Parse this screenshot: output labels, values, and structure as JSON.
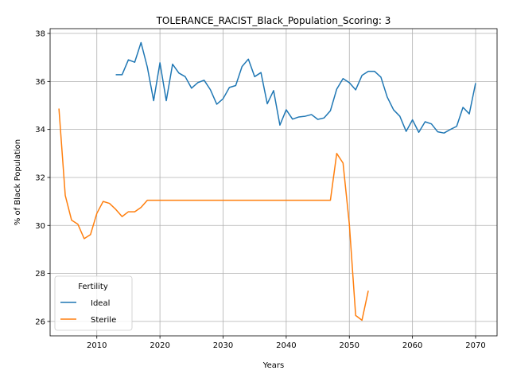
{
  "chart_data": {
    "type": "line",
    "title": "TOLERANCE_RACIST_Black_Population_Scoring: 3",
    "xlabel": "Years",
    "ylabel": "% of Black Population",
    "xlim": [
      2002.6,
      2073.4
    ],
    "ylim": [
      25.4,
      38.2
    ],
    "xticks": [
      2010,
      2020,
      2030,
      2040,
      2050,
      2060,
      2070
    ],
    "yticks": [
      26,
      28,
      30,
      32,
      34,
      36,
      38
    ],
    "grid": true,
    "legend": {
      "title": "Fertility",
      "placement": "lower-left"
    },
    "series": [
      {
        "name": "Ideal",
        "color": "#1f77b4",
        "x": [
          2013,
          2014,
          2015,
          2016,
          2017,
          2018,
          2019,
          2020,
          2021,
          2022,
          2023,
          2024,
          2025,
          2026,
          2027,
          2028,
          2029,
          2030,
          2031,
          2032,
          2033,
          2034,
          2035,
          2036,
          2037,
          2038,
          2039,
          2040,
          2041,
          2042,
          2043,
          2044,
          2045,
          2046,
          2047,
          2048,
          2049,
          2050,
          2051,
          2052,
          2053,
          2054,
          2055,
          2056,
          2057,
          2058,
          2059,
          2060,
          2061,
          2062,
          2063,
          2064,
          2065,
          2066,
          2067,
          2068,
          2069,
          2070
        ],
        "y": [
          36.28,
          36.28,
          36.9,
          36.8,
          37.62,
          36.6,
          35.2,
          36.78,
          35.2,
          36.72,
          36.35,
          36.2,
          35.72,
          35.95,
          36.05,
          35.65,
          35.05,
          35.28,
          35.75,
          35.83,
          36.62,
          36.93,
          36.2,
          36.37,
          35.07,
          35.62,
          34.18,
          34.82,
          34.43,
          34.52,
          34.55,
          34.62,
          34.42,
          34.48,
          34.78,
          35.68,
          36.12,
          35.95,
          35.65,
          36.25,
          36.42,
          36.42,
          36.18,
          35.35,
          34.82,
          34.55,
          33.92,
          34.4,
          33.88,
          34.32,
          34.23,
          33.9,
          33.85,
          34.0,
          34.13,
          34.92,
          34.65,
          35.93
        ]
      },
      {
        "name": "Sterile",
        "color": "#ff7f0e",
        "x": [
          2004,
          2005,
          2006,
          2007,
          2008,
          2009,
          2010,
          2011,
          2012,
          2013,
          2014,
          2015,
          2016,
          2017,
          2018,
          2019,
          2020,
          2021,
          2022,
          2023,
          2024,
          2025,
          2026,
          2027,
          2028,
          2029,
          2030,
          2031,
          2032,
          2033,
          2034,
          2035,
          2036,
          2037,
          2038,
          2039,
          2040,
          2041,
          2042,
          2043,
          2044,
          2045,
          2046,
          2047,
          2048,
          2049,
          2050,
          2051,
          2052,
          2053
        ],
        "y": [
          34.87,
          31.25,
          30.22,
          30.05,
          29.45,
          29.62,
          30.5,
          31.0,
          30.92,
          30.67,
          30.37,
          30.57,
          30.57,
          30.75,
          31.05,
          31.05,
          31.05,
          31.05,
          31.05,
          31.05,
          31.05,
          31.05,
          31.05,
          31.05,
          31.05,
          31.05,
          31.05,
          31.05,
          31.05,
          31.05,
          31.05,
          31.05,
          31.05,
          31.05,
          31.05,
          31.05,
          31.05,
          31.05,
          31.05,
          31.05,
          31.05,
          31.05,
          31.05,
          31.05,
          33.0,
          32.6,
          30.05,
          26.25,
          26.05,
          27.28
        ]
      }
    ]
  }
}
